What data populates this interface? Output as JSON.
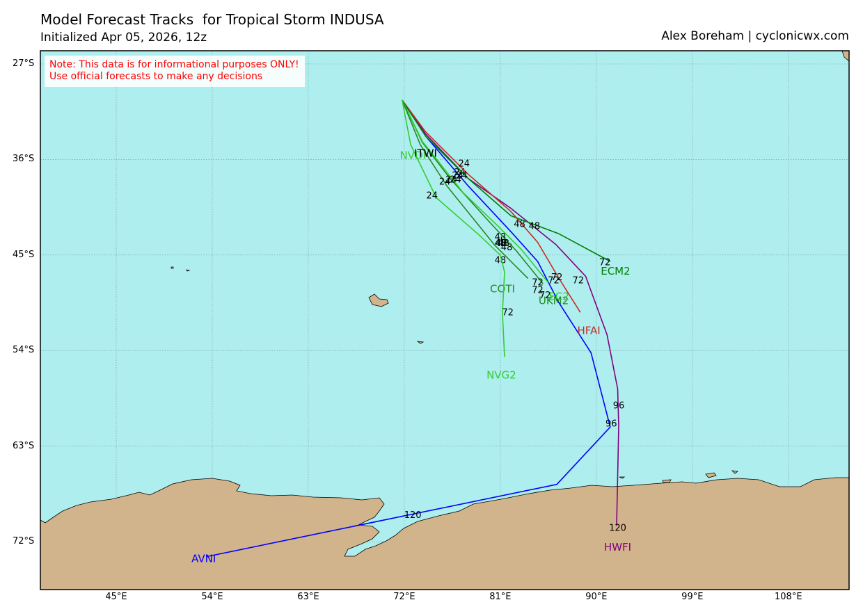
{
  "header": {
    "title": "Model Forecast Tracks  for Tropical Storm INDUSA",
    "subtitle": "Initialized Apr 05, 2026, 12z",
    "credit": "Alex Boreham | cyclonicwx.com"
  },
  "note": {
    "line1": "Note: This data is for informational purposes ONLY!",
    "line2": "Use official forecasts to make any decisions"
  },
  "map": {
    "ocean_color": "#afeeee",
    "land_color": "#d2b48c",
    "grid_color": "#6a9a9a",
    "lat_ticks": [
      "27°S",
      "36°S",
      "45°S",
      "54°S",
      "63°S",
      "72°S"
    ],
    "lon_ticks": [
      "45°E",
      "54°E",
      "63°E",
      "72°E",
      "81°E",
      "90°E",
      "99°E",
      "108°E"
    ]
  },
  "tracks": [
    {
      "name": "AVNI",
      "color": "#0000ff",
      "points": [
        [
          71.8,
          -30.4
        ],
        [
          74,
          -33.8
        ],
        [
          78,
          -38.5
        ],
        [
          82,
          -42.8
        ],
        [
          84.5,
          -45.6
        ],
        [
          86.5,
          -49.5
        ],
        [
          89.5,
          -54.2
        ],
        [
          91.3,
          -61.2
        ],
        [
          86.3,
          -66.6
        ],
        [
          53.5,
          -73.4
        ]
      ],
      "hour_labels": [
        {
          "text": "24",
          "lon": 77,
          "lat": -37.5
        },
        {
          "text": "48",
          "lon": 81.6,
          "lat": -44.3
        },
        {
          "text": "72",
          "lon": 85.2,
          "lat": -48.8
        },
        {
          "text": "96",
          "lon": 91.4,
          "lat": -60.9
        },
        {
          "text": "120",
          "lon": 72.8,
          "lat": -69.5
        }
      ],
      "end_label": {
        "lon": 53.2,
        "lat": -73.6
      }
    },
    {
      "name": "HWFI",
      "color": "#800080",
      "points": [
        [
          71.8,
          -30.4
        ],
        [
          74,
          -33.6
        ],
        [
          78,
          -37.8
        ],
        [
          82,
          -40.6
        ],
        [
          86.2,
          -44
        ],
        [
          89,
          -47
        ],
        [
          91,
          -52.5
        ],
        [
          92,
          -57.6
        ],
        [
          92.1,
          -61.1
        ],
        [
          91.9,
          -70.5
        ]
      ],
      "hour_labels": [
        {
          "text": "24",
          "lon": 77.2,
          "lat": -37.2
        },
        {
          "text": "48",
          "lon": 81,
          "lat": -43.3
        },
        {
          "text": "72",
          "lon": 88.3,
          "lat": -47.4
        },
        {
          "text": "96",
          "lon": 92.1,
          "lat": -59.2
        },
        {
          "text": "120",
          "lon": 92,
          "lat": -70.7
        }
      ],
      "end_label": {
        "lon": 92,
        "lat": -72.5
      }
    },
    {
      "name": "HFAI",
      "color": "#c82828",
      "points": [
        [
          71.8,
          -30.4
        ],
        [
          74,
          -33.4
        ],
        [
          78,
          -37.4
        ],
        [
          82,
          -40.9
        ],
        [
          84.5,
          -43.8
        ],
        [
          86.5,
          -47.2
        ],
        [
          88.5,
          -50.4
        ]
      ],
      "hour_labels": [
        {
          "text": "24",
          "lon": 77.6,
          "lat": -36.4
        },
        {
          "text": "48",
          "lon": 82.8,
          "lat": -42.1
        },
        {
          "text": "72",
          "lon": 86.3,
          "lat": -47.1
        }
      ],
      "end_label": {
        "lon": 89.3,
        "lat": -52.1
      }
    },
    {
      "name": "ECM2",
      "color": "#008000",
      "points": [
        [
          71.8,
          -30.4
        ],
        [
          74,
          -33.8
        ],
        [
          78,
          -37.8
        ],
        [
          82,
          -41.3
        ],
        [
          86.5,
          -43
        ],
        [
          91.3,
          -45.6
        ]
      ],
      "hour_labels": [
        {
          "text": "24",
          "lon": 77.4,
          "lat": -37.5
        },
        {
          "text": "48",
          "lon": 84.2,
          "lat": -42.3
        },
        {
          "text": "72",
          "lon": 90.8,
          "lat": -45.7
        }
      ],
      "end_label": {
        "lon": 91.8,
        "lat": -46.5
      }
    },
    {
      "name": "UKM2",
      "color": "#1e8c1e",
      "points": [
        [
          71.8,
          -30.4
        ],
        [
          73.7,
          -34.4
        ],
        [
          76.3,
          -37.8
        ],
        [
          80,
          -41.9
        ],
        [
          82.5,
          -44.6
        ],
        [
          85,
          -47.7
        ]
      ],
      "hour_labels": [
        {
          "text": "24",
          "lon": 76.4,
          "lat": -37.9
        },
        {
          "text": "48",
          "lon": 81.1,
          "lat": -43.9
        },
        {
          "text": "72",
          "lon": 84.5,
          "lat": -48.3
        }
      ],
      "end_label": {
        "lon": 86,
        "lat": -49.3
      }
    },
    {
      "name": "EC2",
      "color": "#32cd32",
      "points": [
        [
          71.8,
          -30.4
        ],
        [
          73.7,
          -34.3
        ],
        [
          77.5,
          -39.1
        ],
        [
          80.7,
          -42.2
        ],
        [
          83,
          -44.5
        ],
        [
          85.5,
          -47.6
        ]
      ],
      "hour_labels": [
        {
          "text": "24",
          "lon": 76.8,
          "lat": -37.9
        },
        {
          "text": "48",
          "lon": 81.3,
          "lat": -43.9
        },
        {
          "text": "72",
          "lon": 86,
          "lat": -47.4
        }
      ],
      "end_label": {
        "lon": 86.5,
        "lat": -48.9
      }
    },
    {
      "name": "COTI",
      "color": "#228b22",
      "points": [
        [
          71.8,
          -30.4
        ],
        [
          73.5,
          -34.6
        ],
        [
          76,
          -38.5
        ],
        [
          80.5,
          -44.1
        ],
        [
          83.6,
          -47.2
        ]
      ],
      "hour_labels": [
        {
          "text": "24",
          "lon": 75.8,
          "lat": -38.1
        },
        {
          "text": "48",
          "lon": 81,
          "lat": -45.5
        },
        {
          "text": "72",
          "lon": 84.5,
          "lat": -47.6
        }
      ],
      "end_label": {
        "lon": 81.2,
        "lat": -48.2
      }
    },
    {
      "name": "NVG2",
      "color": "#32cd32",
      "points": [
        [
          71.8,
          -30.4
        ],
        [
          72.6,
          -34.6
        ],
        [
          75,
          -39.6
        ],
        [
          79,
          -43.1
        ],
        [
          81,
          -45
        ],
        [
          81.4,
          -46.6
        ],
        [
          81.2,
          -50.4
        ],
        [
          81.4,
          -54.6
        ]
      ],
      "hour_labels": [
        {
          "text": "24",
          "lon": 74.6,
          "lat": -39.4
        },
        {
          "text": "48",
          "lon": 81,
          "lat": -43.9
        },
        {
          "text": "72",
          "lon": 81.7,
          "lat": -50.4
        }
      ],
      "end_label": {
        "lon": 81.1,
        "lat": -56.3
      }
    },
    {
      "name": "NVDI",
      "color": "#32cd32",
      "points": [],
      "hour_labels": [],
      "end_label": {
        "lon": 72.8,
        "lat": -35.6
      }
    },
    {
      "name": "ITWI",
      "color": "#000000",
      "points": [],
      "hour_labels": [],
      "end_label": {
        "lon": 74,
        "lat": -35.4
      }
    }
  ]
}
